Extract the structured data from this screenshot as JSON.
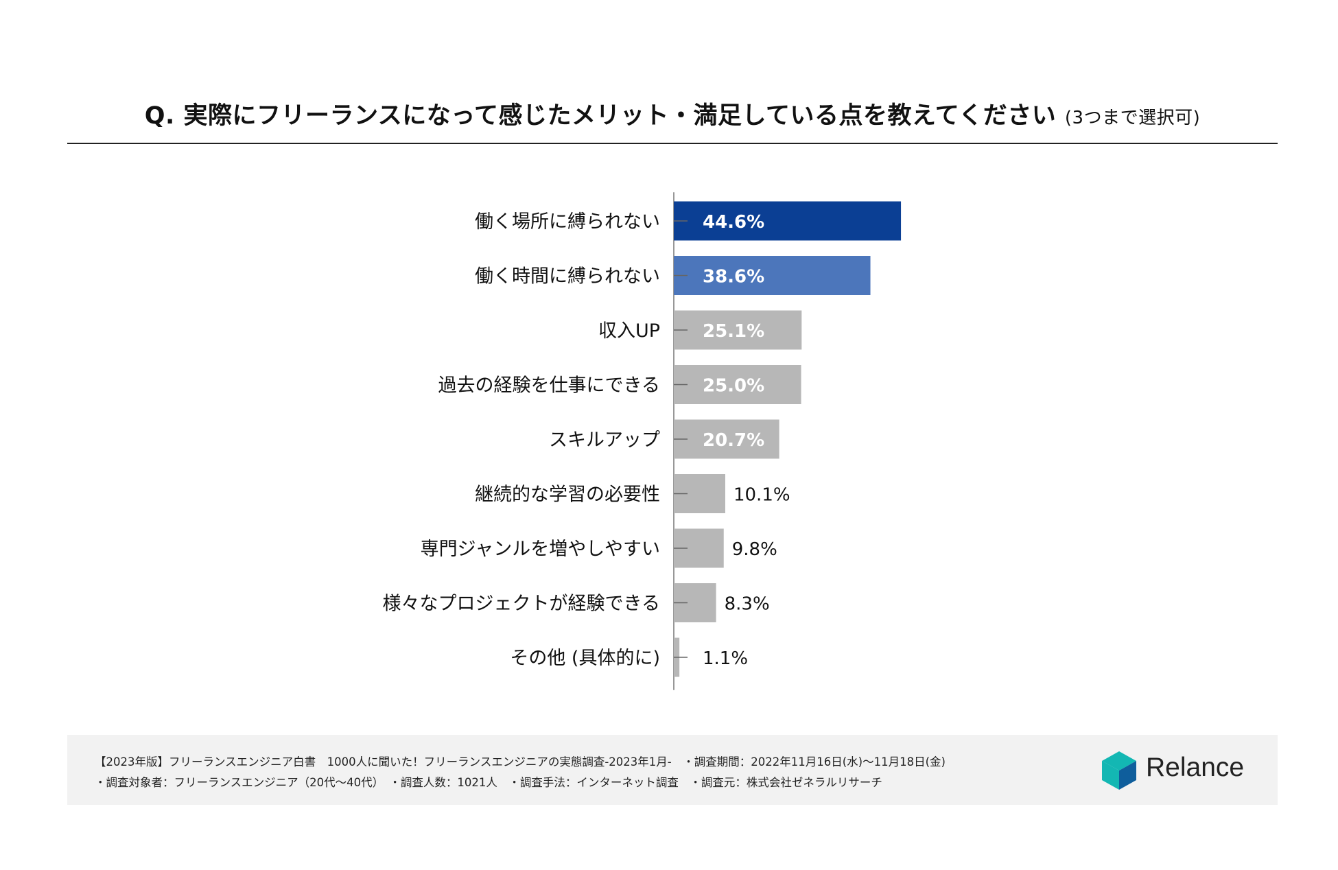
{
  "title": {
    "main": "Q. 実際にフリーランスになって感じたメリット・満足している点を教えてください",
    "note": "(3つまで選択可)"
  },
  "chart_data": {
    "type": "bar",
    "orientation": "horizontal",
    "categories": [
      "働く場所に縛られない",
      "働く時間に縛られない",
      "収入UP",
      "過去の経験を仕事にできる",
      "スキルアップ",
      "継続的な学習の必要性",
      "専門ジャンルを増やしやすい",
      "様々なプロジェクトが経験できる",
      "その他 (具体的に)"
    ],
    "values": [
      44.6,
      38.6,
      25.1,
      25.0,
      20.7,
      10.1,
      9.8,
      8.3,
      1.1
    ],
    "data_labels": [
      "44.6%",
      "38.6%",
      "25.1%",
      "25.0%",
      "20.7%",
      "10.1%",
      "9.8%",
      "8.3%",
      "1.1%"
    ],
    "unit": "%",
    "bar_colors": [
      "#0b3f94",
      "#4c76bb",
      "#b7b7b7",
      "#b7b7b7",
      "#b7b7b7",
      "#b7b7b7",
      "#b7b7b7",
      "#b7b7b7",
      "#b7b7b7"
    ],
    "label_colors": [
      "#ffffff",
      "#ffffff",
      "#ffffff",
      "#ffffff",
      "#ffffff",
      "#111111",
      "#111111",
      "#111111",
      "#111111"
    ],
    "xlim": [
      0,
      100
    ],
    "grid": false,
    "legend": "none"
  },
  "footer": {
    "line1": "【2023年版】フリーランスエンジニア白書　1000人に聞いた！フリーランスエンジニアの実態調査-2023年1月-　・調査期間：2022年11月16日(水)〜11月18日(金)",
    "line2": "・調査対象者：フリーランスエンジニア（20代〜40代）　・調査人数：1021人　・調査手法：インターネット調査　・調査元：株式会社ゼネラルリサーチ",
    "brand": "Relance",
    "logo_colors": [
      "#13b7b3",
      "#0f5e9c",
      "#1a2e6b"
    ]
  }
}
